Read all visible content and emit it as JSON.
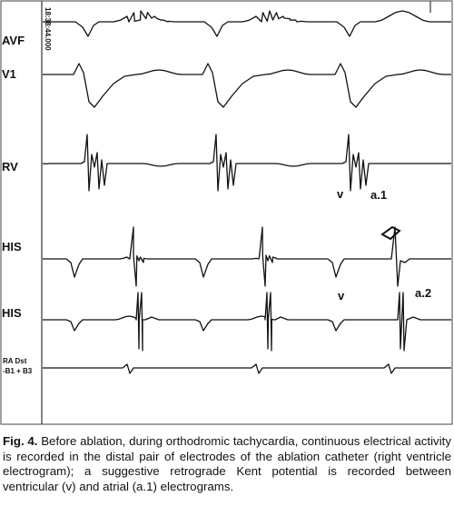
{
  "figure": {
    "timestamp": "18:38:44.000",
    "leads": [
      "AVF",
      "V1",
      "RV",
      "HIS",
      "HIS",
      "RA Dst",
      "-B1 + B3"
    ],
    "annotations": [
      "v",
      "a.1",
      "v",
      "a.2"
    ]
  },
  "caption": {
    "label": "Fig. 4.",
    "text": "Before ablation, during orthodromic tachycardia, continuous electrical activity is recorded in the distal pair of electrodes of the ablation catheter (right ventricle electrogram); a suggestive retrograde Kent potential is recorded between ventricular (v) and atrial (a.1) electrograms."
  }
}
